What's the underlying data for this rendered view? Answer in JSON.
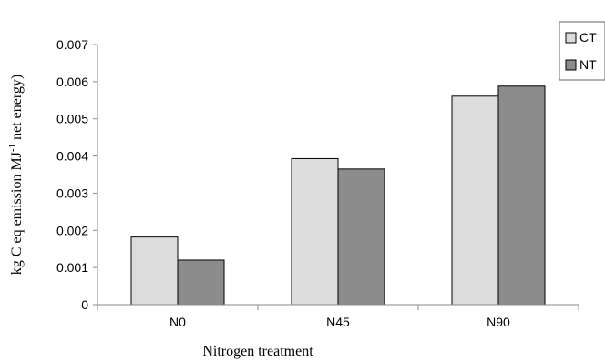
{
  "chart_data": {
    "type": "bar",
    "title": "",
    "xlabel": "Nitrogen treatment",
    "ylabel_main": "kg C eq emission MJ",
    "ylabel_sup": "-1",
    "ylabel_tail": " net energy)",
    "categories": [
      "N0",
      "N45",
      "N90"
    ],
    "series": [
      {
        "name": "CT",
        "values": [
          0.00182,
          0.00393,
          0.00561
        ],
        "color": "#dcdcdc"
      },
      {
        "name": "NT",
        "values": [
          0.0012,
          0.00365,
          0.00588
        ],
        "color": "#8c8c8c"
      }
    ],
    "ylim": [
      0,
      0.007
    ],
    "yticks": [
      0,
      0.001,
      0.002,
      0.003,
      0.004,
      0.005,
      0.006,
      0.007
    ],
    "ytick_labels": [
      "0",
      "0.001",
      "0.002",
      "0.003",
      "0.004",
      "0.005",
      "0.006",
      "0.007"
    ],
    "grid": false,
    "legend_position": "top-right"
  }
}
